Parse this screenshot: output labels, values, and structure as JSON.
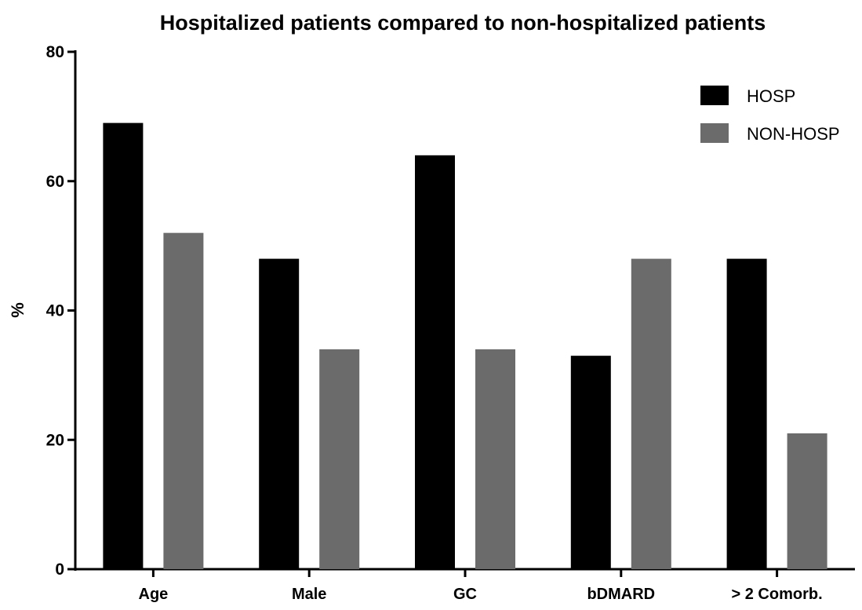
{
  "chart_data": {
    "type": "bar",
    "title": "Hospitalized patients compared to non-hospitalized patients",
    "xlabel": "",
    "ylabel": "%",
    "ylim": [
      0,
      80
    ],
    "yticks": [
      0,
      20,
      40,
      60,
      80
    ],
    "categories": [
      "Age",
      "Male",
      "GC",
      "bDMARD",
      "> 2 Comorb."
    ],
    "series": [
      {
        "name": "HOSP",
        "color": "#000000",
        "values": [
          69,
          48,
          64,
          33,
          48
        ]
      },
      {
        "name": "NON-HOSP",
        "color": "#6b6b6b",
        "values": [
          52,
          34,
          34,
          48,
          21
        ]
      }
    ],
    "legend_position": "top-right",
    "grid": false
  }
}
